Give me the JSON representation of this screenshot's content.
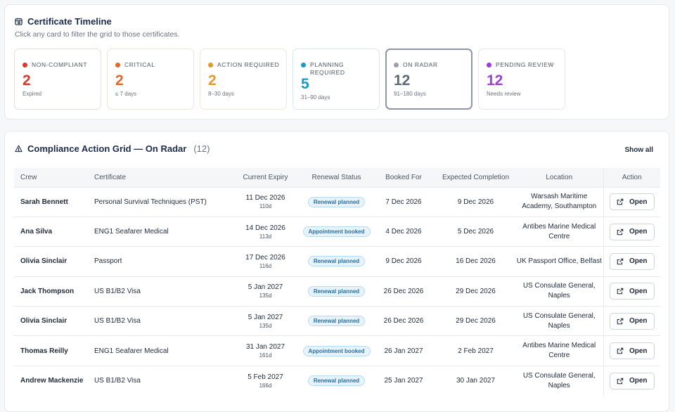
{
  "timeline": {
    "title": "Certificate Timeline",
    "subtitle": "Click any card to filter the grid to those certificates.",
    "cards": [
      {
        "label": "NON-COMPLIANT",
        "count": "2",
        "caption": "Expired",
        "color": "#d63a2f"
      },
      {
        "label": "CRITICAL",
        "count": "2",
        "caption": "≤ 7 days",
        "color": "#e0692a"
      },
      {
        "label": "ACTION REQUIRED",
        "count": "2",
        "caption": "8–30 days",
        "color": "#e39a2a"
      },
      {
        "label": "PLANNING REQUIRED",
        "count": "5",
        "caption": "31–90 days",
        "color": "#1a9ac6"
      },
      {
        "label": "ON RADAR",
        "count": "12",
        "caption": "91–180 days",
        "color": "#6b7482"
      },
      {
        "label": "PENDING REVIEW",
        "count": "12",
        "caption": "Needs review",
        "color": "#9c3fd6"
      }
    ]
  },
  "grid": {
    "title": "Compliance Action Grid — On Radar",
    "count": "(12)",
    "show_all": "Show all",
    "columns": [
      "Crew",
      "Certificate",
      "Current Expiry",
      "Renewal Status",
      "Booked For",
      "Expected Completion",
      "Location",
      "Action"
    ],
    "rows": [
      {
        "crew": "Sarah Bennett",
        "certificate": "Personal Survival Techniques (PST)",
        "expiry": "11 Dec 2026",
        "days": "110d",
        "status": "Renewal planned",
        "booked": "7 Dec 2026",
        "completion": "9 Dec 2026",
        "location": "Warsash Maritime Academy, Southampton",
        "action": "Open"
      },
      {
        "crew": "Ana Silva",
        "certificate": "ENG1 Seafarer Medical",
        "expiry": "14 Dec 2026",
        "days": "113d",
        "status": "Appointment booked",
        "booked": "4 Dec 2026",
        "completion": "5 Dec 2026",
        "location": "Antibes Marine Medical Centre",
        "action": "Open"
      },
      {
        "crew": "Olivia Sinclair",
        "certificate": "Passport",
        "expiry": "17 Dec 2026",
        "days": "116d",
        "status": "Renewal planned",
        "booked": "9 Dec 2026",
        "completion": "16 Dec 2026",
        "location": "UK Passport Office, Belfast",
        "action": "Open"
      },
      {
        "crew": "Jack Thompson",
        "certificate": "US B1/B2 Visa",
        "expiry": "5 Jan 2027",
        "days": "135d",
        "status": "Renewal planned",
        "booked": "26 Dec 2026",
        "completion": "29 Dec 2026",
        "location": "US Consulate General, Naples",
        "action": "Open"
      },
      {
        "crew": "Olivia Sinclair",
        "certificate": "US B1/B2 Visa",
        "expiry": "5 Jan 2027",
        "days": "135d",
        "status": "Renewal planned",
        "booked": "26 Dec 2026",
        "completion": "29 Dec 2026",
        "location": "US Consulate General, Naples",
        "action": "Open"
      },
      {
        "crew": "Thomas Reilly",
        "certificate": "ENG1 Seafarer Medical",
        "expiry": "31 Jan 2027",
        "days": "161d",
        "status": "Appointment booked",
        "booked": "26 Jan 2027",
        "completion": "2 Feb 2027",
        "location": "Antibes Marine Medical Centre",
        "action": "Open"
      },
      {
        "crew": "Andrew Mackenzie",
        "certificate": "US B1/B2 Visa",
        "expiry": "5 Feb 2027",
        "days": "166d",
        "status": "Renewal planned",
        "booked": "25 Jan 2027",
        "completion": "30 Jan 2027",
        "location": "US Consulate General, Naples",
        "action": "Open"
      }
    ]
  }
}
